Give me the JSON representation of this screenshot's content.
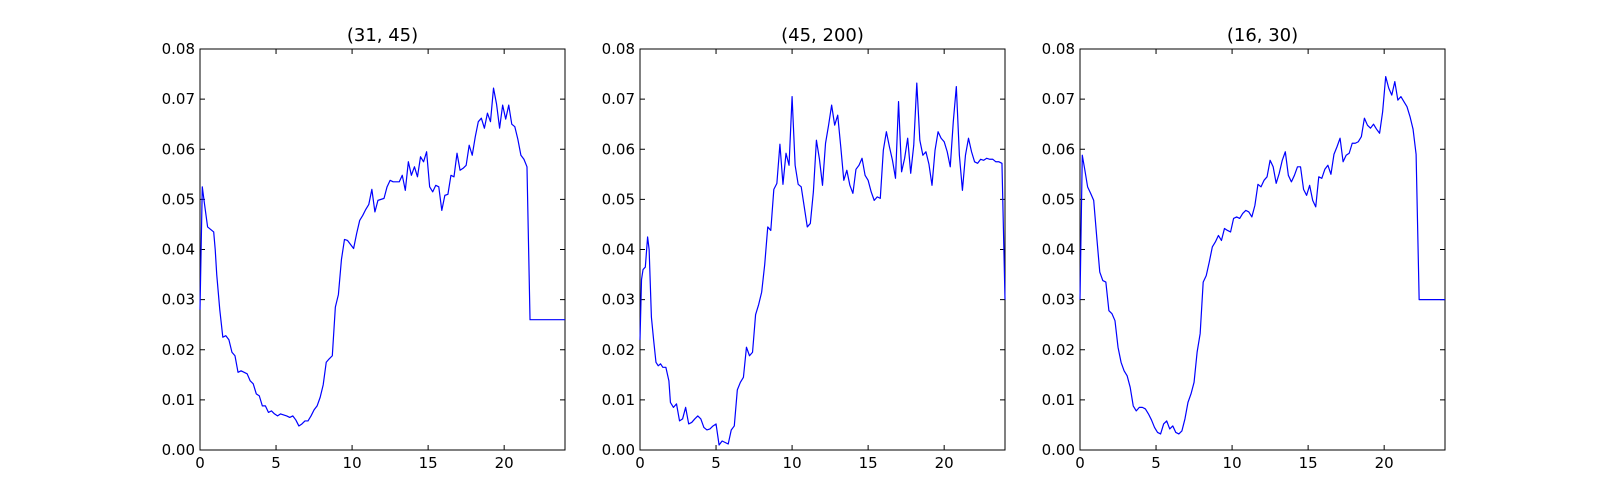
{
  "chart_data": [
    {
      "type": "line",
      "title": "(31, 45)",
      "xlabel": "",
      "ylabel": "",
      "xlim": [
        0,
        24
      ],
      "ylim": [
        0,
        0.08
      ],
      "xticks": [
        0,
        5,
        10,
        15,
        20
      ],
      "xtick_labels": [
        "0",
        "5",
        "10",
        "15",
        "20"
      ],
      "yticks": [
        0,
        0.01,
        0.02,
        0.03,
        0.04,
        0.05,
        0.06,
        0.07,
        0.08
      ],
      "ytick_labels": [
        "0.00",
        "0.01",
        "0.02",
        "0.03",
        "0.04",
        "0.05",
        "0.06",
        "0.07",
        "0.08"
      ],
      "grid": false,
      "series": [
        {
          "color": "#0000ff",
          "x": [
            0,
            0.15,
            0.3,
            0.5,
            0.7,
            0.9,
            1.0,
            1.1,
            1.3,
            1.5,
            1.7,
            1.9,
            2.1,
            2.3,
            2.5,
            2.7,
            2.9,
            3.1,
            3.3,
            3.5,
            3.7,
            3.9,
            4.1,
            4.3,
            4.5,
            4.7,
            4.9,
            5.1,
            5.3,
            5.5,
            5.7,
            5.9,
            6.1,
            6.3,
            6.5,
            6.7,
            6.9,
            7.1,
            7.3,
            7.5,
            7.7,
            7.9,
            8.1,
            8.3,
            8.5,
            8.7,
            8.9,
            9.1,
            9.3,
            9.5,
            9.7,
            9.9,
            10.1,
            10.3,
            10.5,
            10.7,
            10.9,
            11.1,
            11.3,
            11.5,
            11.7,
            11.9,
            12.1,
            12.3,
            12.5,
            12.7,
            12.9,
            13.1,
            13.3,
            13.5,
            13.7,
            13.9,
            14.1,
            14.3,
            14.5,
            14.7,
            14.9,
            15.1,
            15.3,
            15.5,
            15.7,
            15.9,
            16.1,
            16.3,
            16.5,
            16.7,
            16.9,
            17.1,
            17.3,
            17.5,
            17.7,
            17.9,
            18.1,
            18.3,
            18.5,
            18.7,
            18.9,
            19.1,
            19.3,
            19.5,
            19.7,
            19.9,
            20.1,
            20.3,
            20.5,
            20.7,
            20.9,
            21.1,
            21.3,
            21.5,
            21.7,
            21.9,
            22.1,
            22.3,
            22.5,
            22.7,
            22.9,
            23.1,
            23.3,
            23.5,
            23.7,
            23.9,
            24.0
          ],
          "y": [
            0.028,
            0.0525,
            0.049,
            0.0445,
            0.044,
            0.0435,
            0.04,
            0.035,
            0.028,
            0.0225,
            0.0228,
            0.022,
            0.0195,
            0.0188,
            0.0155,
            0.0158,
            0.0155,
            0.0152,
            0.0138,
            0.0132,
            0.0112,
            0.0108,
            0.0088,
            0.0088,
            0.0075,
            0.0078,
            0.0072,
            0.0068,
            0.0072,
            0.007,
            0.0068,
            0.0065,
            0.0068,
            0.006,
            0.0048,
            0.0052,
            0.0058,
            0.0058,
            0.0068,
            0.008,
            0.0088,
            0.0105,
            0.013,
            0.0175,
            0.0182,
            0.0188,
            0.0285,
            0.031,
            0.038,
            0.042,
            0.0418,
            0.041,
            0.0402,
            0.0432,
            0.0458,
            0.0468,
            0.048,
            0.049,
            0.052,
            0.0475,
            0.0498,
            0.05,
            0.0502,
            0.0525,
            0.0538,
            0.0535,
            0.0535,
            0.0535,
            0.0548,
            0.0518,
            0.0575,
            0.0548,
            0.0565,
            0.0545,
            0.0585,
            0.0575,
            0.0595,
            0.0525,
            0.0515,
            0.0528,
            0.0525,
            0.0478,
            0.0508,
            0.051,
            0.0548,
            0.0545,
            0.0592,
            0.0558,
            0.0562,
            0.0568,
            0.0608,
            0.0588,
            0.0625,
            0.0655,
            0.0662,
            0.0642,
            0.0672,
            0.0655,
            0.0722,
            0.069,
            0.0642,
            0.0688,
            0.066,
            0.0688,
            0.065,
            0.0645,
            0.062,
            0.0588,
            0.058,
            0.0565,
            0.026,
            0.026,
            0.026,
            0.026,
            0.026,
            0.026,
            0.026,
            0.026,
            0.026,
            0.026,
            0.026,
            0.026,
            0.026
          ]
        }
      ]
    },
    {
      "type": "line",
      "title": "(45, 200)",
      "xlabel": "",
      "ylabel": "",
      "xlim": [
        0,
        24
      ],
      "ylim": [
        0,
        0.08
      ],
      "xticks": [
        0,
        5,
        10,
        15,
        20
      ],
      "xtick_labels": [
        "0",
        "5",
        "10",
        "15",
        "20"
      ],
      "yticks": [
        0,
        0.01,
        0.02,
        0.03,
        0.04,
        0.05,
        0.06,
        0.07,
        0.08
      ],
      "ytick_labels": [
        "0.00",
        "0.01",
        "0.02",
        "0.03",
        "0.04",
        "0.05",
        "0.06",
        "0.07",
        "0.08"
      ],
      "grid": false,
      "series": [
        {
          "color": "#0000ff",
          "x": [
            0,
            0.1,
            0.2,
            0.35,
            0.5,
            0.6,
            0.75,
            0.9,
            1.05,
            1.2,
            1.35,
            1.5,
            1.7,
            1.9,
            2.0,
            2.2,
            2.4,
            2.6,
            2.8,
            3.0,
            3.2,
            3.4,
            3.6,
            3.8,
            4.0,
            4.2,
            4.4,
            4.6,
            4.8,
            5.0,
            5.2,
            5.4,
            5.6,
            5.8,
            6.0,
            6.2,
            6.4,
            6.6,
            6.8,
            7.0,
            7.2,
            7.4,
            7.6,
            7.8,
            8.0,
            8.2,
            8.4,
            8.6,
            8.8,
            9.0,
            9.2,
            9.4,
            9.6,
            9.8,
            10.0,
            10.2,
            10.4,
            10.6,
            10.8,
            11.0,
            11.2,
            11.4,
            11.6,
            11.8,
            12.0,
            12.2,
            12.4,
            12.6,
            12.8,
            13.0,
            13.2,
            13.4,
            13.6,
            13.8,
            14.0,
            14.2,
            14.4,
            14.6,
            14.8,
            15.0,
            15.2,
            15.4,
            15.6,
            15.8,
            16.0,
            16.2,
            16.4,
            16.6,
            16.8,
            17.0,
            17.2,
            17.4,
            17.6,
            17.8,
            18.0,
            18.2,
            18.4,
            18.6,
            18.8,
            19.0,
            19.2,
            19.4,
            19.6,
            19.8,
            20.0,
            20.2,
            20.4,
            20.6,
            20.8,
            21.0,
            21.2,
            21.4,
            21.6,
            21.8,
            22.0,
            22.2,
            22.4,
            22.6,
            22.8,
            23.0,
            23.2,
            23.4,
            23.6,
            23.8,
            24.0
          ],
          "y": [
            0.022,
            0.034,
            0.036,
            0.0365,
            0.0425,
            0.04,
            0.0265,
            0.0218,
            0.0175,
            0.0168,
            0.0172,
            0.0165,
            0.0165,
            0.0138,
            0.0095,
            0.0085,
            0.0092,
            0.0058,
            0.0062,
            0.0085,
            0.0052,
            0.0055,
            0.0062,
            0.0068,
            0.0062,
            0.0045,
            0.004,
            0.0042,
            0.0048,
            0.0052,
            0.001,
            0.0018,
            0.0015,
            0.0012,
            0.004,
            0.0048,
            0.012,
            0.0135,
            0.0145,
            0.0205,
            0.0188,
            0.0195,
            0.027,
            0.029,
            0.0315,
            0.037,
            0.0445,
            0.0438,
            0.052,
            0.0532,
            0.061,
            0.053,
            0.0592,
            0.0568,
            0.0705,
            0.0568,
            0.053,
            0.0525,
            0.0485,
            0.0445,
            0.0452,
            0.0515,
            0.0618,
            0.058,
            0.0528,
            0.0612,
            0.0648,
            0.0688,
            0.0648,
            0.0668,
            0.0605,
            0.0538,
            0.0558,
            0.0528,
            0.0512,
            0.056,
            0.0568,
            0.0582,
            0.0548,
            0.0538,
            0.0515,
            0.0498,
            0.0505,
            0.0502,
            0.0598,
            0.0635,
            0.0605,
            0.0578,
            0.0542,
            0.0695,
            0.0555,
            0.0582,
            0.0622,
            0.0552,
            0.0608,
            0.0732,
            0.0618,
            0.0588,
            0.0595,
            0.057,
            0.0528,
            0.0598,
            0.0635,
            0.0622,
            0.0615,
            0.0595,
            0.0565,
            0.0655,
            0.0725,
            0.0588,
            0.0518,
            0.0588,
            0.0622,
            0.0595,
            0.0575,
            0.0572,
            0.058,
            0.0578,
            0.0582,
            0.058,
            0.058,
            0.0575,
            0.0575,
            0.0572,
            0.03
          ]
        }
      ]
    },
    {
      "type": "line",
      "title": "(16, 30)",
      "xlabel": "",
      "ylabel": "",
      "xlim": [
        0,
        24
      ],
      "ylim": [
        0,
        0.08
      ],
      "xticks": [
        0,
        5,
        10,
        15,
        20
      ],
      "xtick_labels": [
        "0",
        "5",
        "10",
        "15",
        "20"
      ],
      "yticks": [
        0,
        0.01,
        0.02,
        0.03,
        0.04,
        0.05,
        0.06,
        0.07,
        0.08
      ],
      "ytick_labels": [
        "0.00",
        "0.01",
        "0.02",
        "0.03",
        "0.04",
        "0.05",
        "0.06",
        "0.07",
        "0.08"
      ],
      "grid": false,
      "series": [
        {
          "color": "#0000ff",
          "x": [
            0,
            0.15,
            0.3,
            0.5,
            0.7,
            0.9,
            1.1,
            1.3,
            1.5,
            1.7,
            1.9,
            2.1,
            2.3,
            2.5,
            2.7,
            2.9,
            3.1,
            3.3,
            3.5,
            3.7,
            3.9,
            4.1,
            4.3,
            4.5,
            4.7,
            4.9,
            5.1,
            5.3,
            5.5,
            5.7,
            5.9,
            6.1,
            6.3,
            6.5,
            6.7,
            6.9,
            7.1,
            7.3,
            7.5,
            7.7,
            7.9,
            8.1,
            8.3,
            8.5,
            8.7,
            8.9,
            9.1,
            9.3,
            9.5,
            9.7,
            9.9,
            10.1,
            10.3,
            10.5,
            10.7,
            10.9,
            11.1,
            11.3,
            11.5,
            11.7,
            11.9,
            12.1,
            12.3,
            12.5,
            12.7,
            12.9,
            13.1,
            13.3,
            13.5,
            13.7,
            13.9,
            14.1,
            14.3,
            14.5,
            14.7,
            14.9,
            15.1,
            15.3,
            15.5,
            15.7,
            15.9,
            16.1,
            16.3,
            16.5,
            16.7,
            16.9,
            17.1,
            17.3,
            17.5,
            17.7,
            17.9,
            18.1,
            18.3,
            18.5,
            18.7,
            18.9,
            19.1,
            19.3,
            19.5,
            19.7,
            19.9,
            20.1,
            20.3,
            20.5,
            20.7,
            20.9,
            21.1,
            21.3,
            21.5,
            21.7,
            21.9,
            22.1,
            22.3,
            22.5,
            22.7,
            22.9,
            23.1,
            23.3,
            23.5,
            23.7,
            23.9,
            24.0
          ],
          "y": [
            0.03,
            0.0588,
            0.0562,
            0.0525,
            0.0512,
            0.0498,
            0.0425,
            0.0355,
            0.0338,
            0.0335,
            0.0278,
            0.0272,
            0.0258,
            0.0205,
            0.0175,
            0.0158,
            0.0148,
            0.0125,
            0.0088,
            0.0078,
            0.0085,
            0.0085,
            0.0082,
            0.0072,
            0.006,
            0.0045,
            0.0035,
            0.0032,
            0.0052,
            0.0058,
            0.0042,
            0.0048,
            0.0035,
            0.0032,
            0.0038,
            0.0062,
            0.0095,
            0.0112,
            0.0135,
            0.0195,
            0.0232,
            0.0335,
            0.0348,
            0.0375,
            0.0405,
            0.0415,
            0.0428,
            0.0418,
            0.0442,
            0.0438,
            0.0435,
            0.0462,
            0.0465,
            0.0462,
            0.0472,
            0.0478,
            0.0475,
            0.0465,
            0.0488,
            0.053,
            0.0525,
            0.0538,
            0.0545,
            0.0578,
            0.0565,
            0.0532,
            0.0552,
            0.0578,
            0.0595,
            0.0548,
            0.0535,
            0.0548,
            0.0565,
            0.0565,
            0.052,
            0.0508,
            0.0528,
            0.0498,
            0.0485,
            0.0545,
            0.0542,
            0.056,
            0.0568,
            0.055,
            0.059,
            0.0605,
            0.0622,
            0.0575,
            0.0588,
            0.0592,
            0.0612,
            0.0612,
            0.0615,
            0.0625,
            0.0662,
            0.0648,
            0.0642,
            0.065,
            0.064,
            0.0632,
            0.0675,
            0.0745,
            0.0722,
            0.0708,
            0.0735,
            0.0698,
            0.0705,
            0.0695,
            0.0685,
            0.0665,
            0.064,
            0.059,
            0.03,
            0.03,
            0.03,
            0.03,
            0.03,
            0.03,
            0.03,
            0.03,
            0.03,
            0.03
          ]
        }
      ]
    }
  ]
}
